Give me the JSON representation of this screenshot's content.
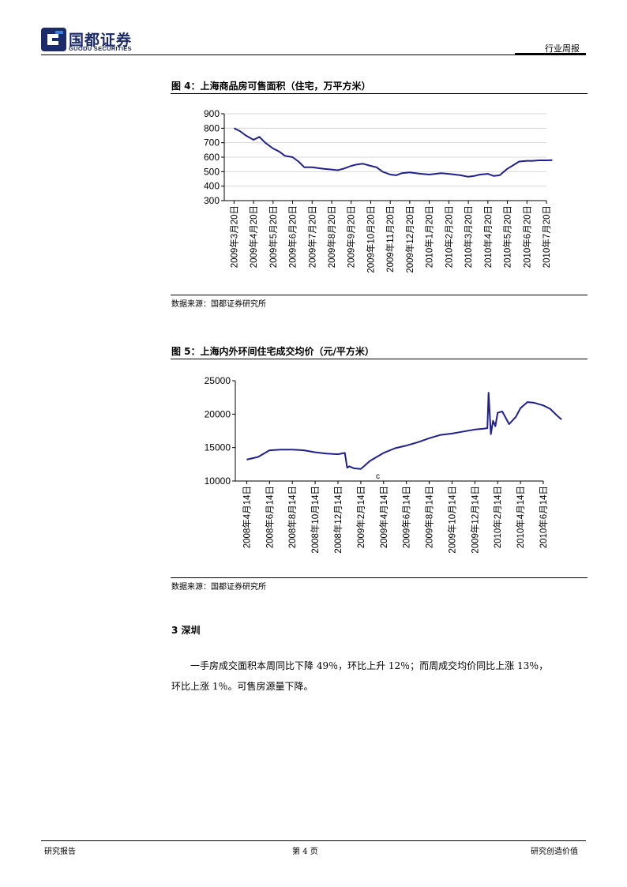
{
  "header": {
    "logo_cn": "国都证券",
    "logo_en": "GUODU SECURITIES",
    "right_label": "行业周报"
  },
  "figure4": {
    "title": "图 4：上海商品房可售面积（住宅，万平方米）",
    "source": "数据来源：国都证券研究所"
  },
  "figure5": {
    "title": "图 5：上海内外环间住宅成交均价（元/平方米）",
    "source": "数据来源：国都证券研究所"
  },
  "section": {
    "heading": "3 深圳",
    "paragraph_line1": "一手房成交面积本周同比下降 49％，环比上升 12％；而周成交均价同比上涨 13％，",
    "paragraph_line2": "环比上涨 1％。可售房源量下降。"
  },
  "footer": {
    "left": "研究报告",
    "center": "第 4 页",
    "right": "研究创造价值"
  },
  "chart_data": [
    {
      "type": "line",
      "ylim": [
        300,
        900
      ],
      "yticks": [
        300,
        400,
        500,
        600,
        700,
        800,
        900
      ],
      "xlabels": [
        "2009年3月20日",
        "2009年4月20日",
        "2009年5月20日",
        "2009年6月20日",
        "2009年7月20日",
        "2009年8月20日",
        "2009年9月20日",
        "2009年10月20日",
        "2009年11月20日",
        "2009年12月20日",
        "2010年1月20日",
        "2010年2月20日",
        "2010年3月20日",
        "2010年4月20日",
        "2010年5月20日",
        "2010年6月20日",
        "2010年7月20日"
      ],
      "grid": true,
      "color": "#1f1f8f",
      "series": [
        {
          "x": [
            0,
            0.3,
            0.6,
            1.0,
            1.3,
            1.6,
            2.0,
            2.3,
            2.6,
            3.0,
            3.3,
            3.6,
            4.0,
            4.3,
            4.6,
            5.0,
            5.3,
            5.6,
            6.0,
            6.3,
            6.6,
            7.0,
            7.3,
            7.6,
            8.0,
            8.3,
            8.6,
            9.0,
            9.3,
            9.6,
            10.0,
            10.3,
            10.6,
            11.0,
            11.3,
            11.6,
            12.0,
            12.3,
            12.6,
            13.0,
            13.3,
            13.6,
            14.0,
            14.3,
            14.6,
            15.0,
            15.3,
            15.6,
            16.0,
            16.3
          ],
          "y": [
            800,
            780,
            750,
            720,
            740,
            700,
            660,
            640,
            610,
            600,
            570,
            530,
            530,
            525,
            520,
            515,
            510,
            520,
            540,
            550,
            555,
            540,
            530,
            500,
            480,
            475,
            490,
            495,
            490,
            485,
            480,
            485,
            490,
            485,
            480,
            475,
            465,
            470,
            480,
            485,
            470,
            475,
            520,
            545,
            570,
            575,
            575,
            578,
            578,
            580
          ]
        }
      ]
    },
    {
      "type": "line",
      "ylim": [
        10000,
        25000
      ],
      "yticks": [
        10000,
        15000,
        20000,
        25000
      ],
      "xlabels": [
        "2008年4月14日",
        "2008年6月14日",
        "2008年8月14日",
        "2008年10月14日",
        "2008年12月14日",
        "2009年2月14日",
        "2009年4月14日",
        "2009年6月14日",
        "2009年8月14日",
        "2009年10月14日",
        "2009年12月14日",
        "2010年2月14日",
        "2010年4月14日",
        "2010年6月14日"
      ],
      "grid": false,
      "color": "#1f1f8f",
      "annotation": "c",
      "series": [
        {
          "x": [
            0,
            0.5,
            1.0,
            1.5,
            2.0,
            2.5,
            3.0,
            3.5,
            4.0,
            4.3,
            4.4,
            4.5,
            4.7,
            5.0,
            5.2,
            5.4,
            5.7,
            6.0,
            6.5,
            7.0,
            7.5,
            8.0,
            8.5,
            9.0,
            9.5,
            10.0,
            10.3,
            10.55,
            10.6,
            10.7,
            10.8,
            10.9,
            11.0,
            11.2,
            11.5,
            11.8,
            12.0,
            12.3,
            12.6,
            13.0,
            13.3,
            13.6,
            13.8
          ],
          "y": [
            13200,
            13600,
            14600,
            14700,
            14700,
            14600,
            14300,
            14100,
            14000,
            14200,
            12000,
            12200,
            11900,
            11800,
            12400,
            13000,
            13600,
            14200,
            14900,
            15300,
            15800,
            16400,
            16900,
            17100,
            17400,
            17700,
            17800,
            17900,
            23200,
            17000,
            19000,
            18200,
            20200,
            20400,
            18500,
            19600,
            20900,
            21800,
            21700,
            21300,
            20800,
            19800,
            19200
          ]
        }
      ]
    }
  ]
}
